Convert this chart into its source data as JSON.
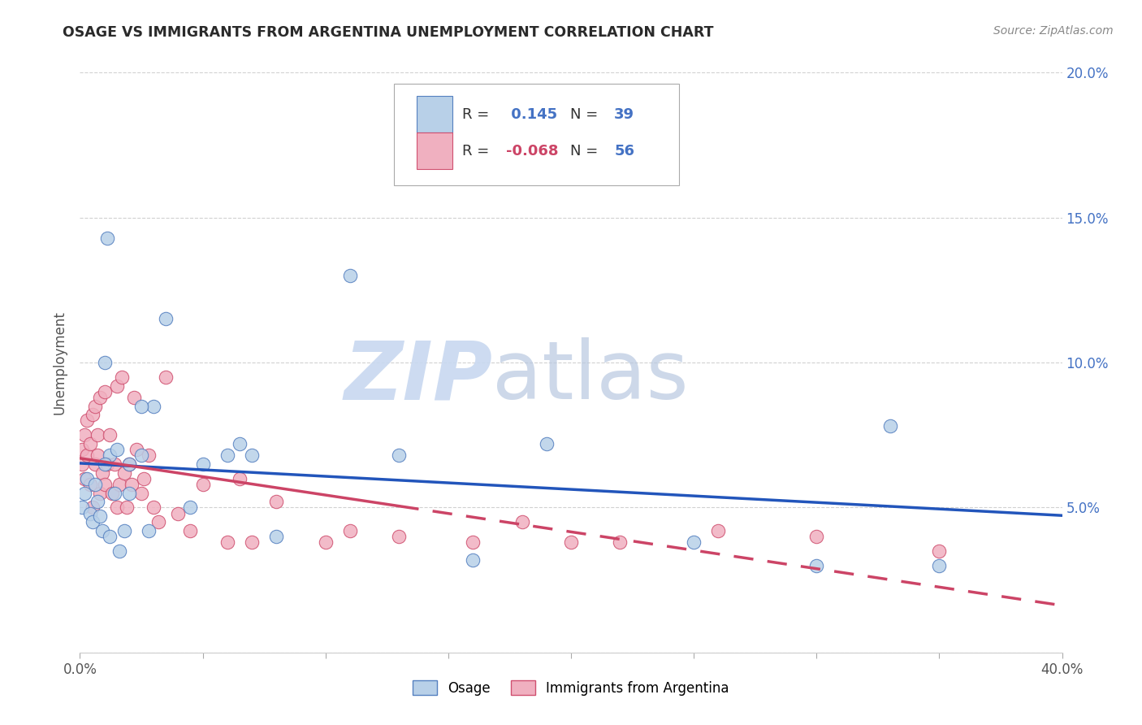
{
  "title": "OSAGE VS IMMIGRANTS FROM ARGENTINA UNEMPLOYMENT CORRELATION CHART",
  "source": "Source: ZipAtlas.com",
  "ylabel": "Unemployment",
  "xlim": [
    0.0,
    0.4
  ],
  "ylim": [
    0.0,
    0.2
  ],
  "xticks": [
    0.0,
    0.05,
    0.1,
    0.15,
    0.2,
    0.25,
    0.3,
    0.35,
    0.4
  ],
  "yticks": [
    0.0,
    0.05,
    0.1,
    0.15,
    0.2
  ],
  "r_osage": 0.145,
  "n_osage": 39,
  "r_argentina": -0.068,
  "n_argentina": 56,
  "osage_face": "#b8d0e8",
  "osage_edge": "#5580c0",
  "argentina_face": "#f0b0c0",
  "argentina_edge": "#d05070",
  "trend_blue": "#2255bb",
  "trend_pink": "#cc4466",
  "watermark": "ZIPatlas",
  "watermark_color": "#ccd8ee",
  "osage_x": [
    0.001,
    0.002,
    0.003,
    0.004,
    0.005,
    0.006,
    0.007,
    0.008,
    0.009,
    0.01,
    0.011,
    0.012,
    0.014,
    0.016,
    0.018,
    0.02,
    0.025,
    0.028,
    0.03,
    0.035,
    0.045,
    0.05,
    0.06,
    0.065,
    0.07,
    0.08,
    0.11,
    0.13,
    0.16,
    0.19,
    0.25,
    0.3,
    0.33,
    0.35,
    0.01,
    0.012,
    0.015,
    0.02,
    0.025
  ],
  "osage_y": [
    0.05,
    0.055,
    0.06,
    0.048,
    0.045,
    0.058,
    0.052,
    0.047,
    0.042,
    0.1,
    0.143,
    0.068,
    0.055,
    0.035,
    0.042,
    0.065,
    0.068,
    0.042,
    0.085,
    0.115,
    0.05,
    0.065,
    0.068,
    0.072,
    0.068,
    0.04,
    0.13,
    0.068,
    0.032,
    0.072,
    0.038,
    0.03,
    0.078,
    0.03,
    0.065,
    0.04,
    0.07,
    0.055,
    0.085
  ],
  "argentina_x": [
    0.001,
    0.001,
    0.002,
    0.002,
    0.003,
    0.003,
    0.004,
    0.004,
    0.005,
    0.005,
    0.006,
    0.006,
    0.007,
    0.007,
    0.008,
    0.008,
    0.009,
    0.01,
    0.01,
    0.011,
    0.012,
    0.013,
    0.014,
    0.015,
    0.015,
    0.016,
    0.017,
    0.018,
    0.019,
    0.02,
    0.021,
    0.022,
    0.023,
    0.025,
    0.026,
    0.028,
    0.03,
    0.032,
    0.035,
    0.04,
    0.045,
    0.05,
    0.06,
    0.065,
    0.07,
    0.08,
    0.1,
    0.11,
    0.13,
    0.16,
    0.18,
    0.2,
    0.22,
    0.26,
    0.3,
    0.35
  ],
  "argentina_y": [
    0.065,
    0.07,
    0.06,
    0.075,
    0.068,
    0.08,
    0.058,
    0.072,
    0.05,
    0.082,
    0.065,
    0.085,
    0.068,
    0.075,
    0.055,
    0.088,
    0.062,
    0.058,
    0.09,
    0.065,
    0.075,
    0.055,
    0.065,
    0.05,
    0.092,
    0.058,
    0.095,
    0.062,
    0.05,
    0.065,
    0.058,
    0.088,
    0.07,
    0.055,
    0.06,
    0.068,
    0.05,
    0.045,
    0.095,
    0.048,
    0.042,
    0.058,
    0.038,
    0.06,
    0.038,
    0.052,
    0.038,
    0.042,
    0.04,
    0.038,
    0.045,
    0.038,
    0.038,
    0.042,
    0.04,
    0.035
  ]
}
